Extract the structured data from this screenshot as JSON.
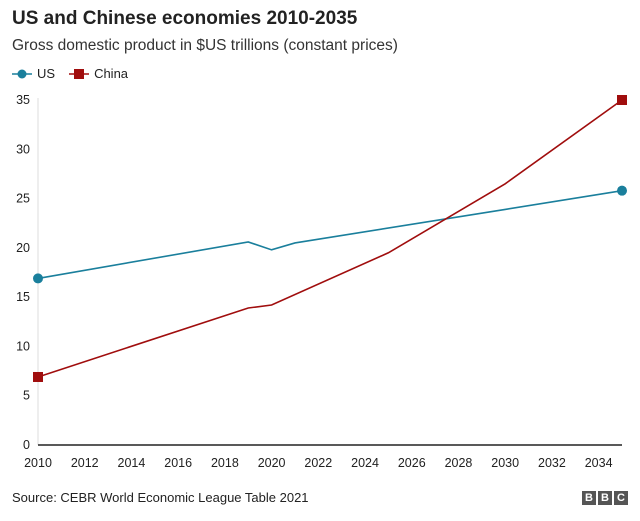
{
  "chart_data": {
    "type": "line",
    "title": "US and Chinese economies 2010-2035",
    "subtitle": "Gross domestic product in $US trillions (constant prices)",
    "xlim": [
      2010,
      2035
    ],
    "ylim": [
      0,
      35
    ],
    "xticks": [
      "2010",
      "2012",
      "2014",
      "2016",
      "2018",
      "2020",
      "2022",
      "2024",
      "2026",
      "2028",
      "2030",
      "2032",
      "2034"
    ],
    "yticks": [
      "0",
      "5",
      "10",
      "15",
      "20",
      "25",
      "30",
      "35"
    ],
    "grid": false,
    "legend": "top-left",
    "series": [
      {
        "name": "US",
        "color": "#1a7f9c",
        "marker": "circle",
        "x": [
          2010,
          2019,
          2020,
          2021,
          2030,
          2035
        ],
        "values": [
          16.9,
          20.6,
          19.8,
          20.5,
          23.9,
          25.8
        ]
      },
      {
        "name": "China",
        "color": "#a00d0d",
        "marker": "square",
        "x": [
          2010,
          2019,
          2020,
          2025,
          2030,
          2035
        ],
        "values": [
          6.9,
          13.9,
          14.2,
          19.5,
          26.5,
          35.0
        ]
      }
    ]
  },
  "footer": {
    "source": "Source: CEBR World Economic League Table 2021",
    "logo": "BBC"
  }
}
